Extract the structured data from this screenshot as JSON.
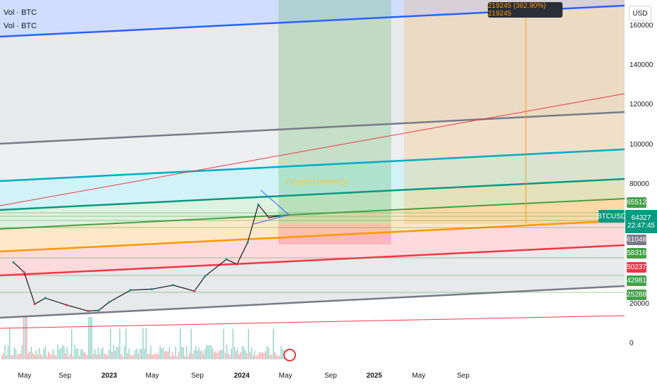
{
  "legend": {
    "line1": "Vol · BTC",
    "line2": "Vol · BTC"
  },
  "axis": {
    "currency": "USD",
    "ticks": [
      "160000",
      "140000",
      "120000",
      "100000",
      "80000",
      "20000",
      "0"
    ],
    "xticks": [
      {
        "label": "May",
        "bold": false
      },
      {
        "label": "Sep",
        "bold": false
      },
      {
        "label": "2023",
        "bold": true
      },
      {
        "label": "May",
        "bold": false
      },
      {
        "label": "Sep",
        "bold": false
      },
      {
        "label": "2024",
        "bold": true
      },
      {
        "label": "May",
        "bold": false
      },
      {
        "label": "Sep",
        "bold": false
      },
      {
        "label": "2025",
        "bold": true
      },
      {
        "label": "May",
        "bold": false
      },
      {
        "label": "Sep",
        "bold": false
      }
    ]
  },
  "price_badges": [
    {
      "label": "65512",
      "color": "#43a047"
    },
    {
      "label": "61048",
      "color": "#787b86"
    },
    {
      "label": "58316",
      "color": "#43a047"
    },
    {
      "label": "50237",
      "color": "#f23645"
    },
    {
      "label": "42981",
      "color": "#43a047"
    },
    {
      "label": "25288",
      "color": "#43a047"
    }
  ],
  "current": {
    "symbol": "BTCUSD",
    "price": "64327",
    "countdown": "22:47:45"
  },
  "measure": {
    "label": "219245 (362.90%) 219245"
  },
  "annotation": {
    "text": "Cryptocurrency"
  },
  "colors": {
    "up": "#089981",
    "down": "#f23645",
    "orange": "#ff9800"
  },
  "chart_data": {
    "type": "line",
    "title": "",
    "xlabel": "",
    "ylabel": "",
    "ylim": [
      0,
      175000
    ],
    "grid": false,
    "x": [
      "2022-04",
      "2022-05",
      "2022-06",
      "2022-07",
      "2022-09",
      "2022-11",
      "2022-12",
      "2023-01",
      "2023-03",
      "2023-05",
      "2023-07",
      "2023-09",
      "2023-10",
      "2023-12",
      "2024-01",
      "2024-02",
      "2024-03",
      "2024-04",
      "2024-05"
    ],
    "series": [
      {
        "values": [
          41000,
          36000,
          20000,
          23000,
          19500,
          16500,
          16800,
          21000,
          27000,
          27500,
          29500,
          26500,
          34000,
          42500,
          40000,
          51000,
          70000,
          63500,
          64327
        ]
      }
    ]
  }
}
